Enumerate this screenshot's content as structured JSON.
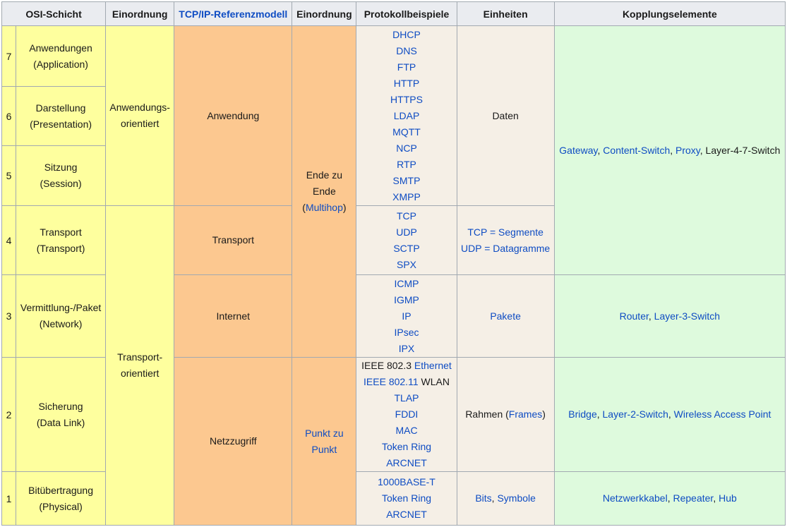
{
  "colors": {
    "header_bg": "#eaecf0",
    "osi_yellow": "#feff9e",
    "tcpip_orange": "#fcc890",
    "protocol_beige": "#f5efe6",
    "coupling_green": "#defadd",
    "border_gray": "#a2a9b1",
    "link_blue": "#0e4cc3"
  },
  "header": {
    "osi_schicht": "OSI-Schicht",
    "einordnung_osi": "Einordnung",
    "tcpip_referenzmodell": "TCP/IP-Referenzmodell",
    "einordnung_tcpip": "Einordnung",
    "protokollbeispiele": "Protokollbeispiele",
    "einheiten": "Einheiten",
    "kopplungselemente": "Kopplungselemente"
  },
  "cells": {
    "l7_num": "7",
    "l7_name": [
      [
        {
          "t": "Anwendungen"
        }
      ],
      [
        {
          "t": "(Application)"
        }
      ]
    ],
    "l6_num": "6",
    "l6_name": [
      [
        {
          "t": "Darstellung"
        }
      ],
      [
        {
          "t": "(Presentation)"
        }
      ]
    ],
    "l5_num": "5",
    "l5_name": [
      [
        {
          "t": "Sitzung"
        }
      ],
      [
        {
          "t": "(Session)"
        }
      ]
    ],
    "l4_num": "4",
    "l4_name": [
      [
        {
          "t": "Transport"
        }
      ],
      [
        {
          "t": "(Transport)"
        }
      ]
    ],
    "l3_num": "3",
    "l3_name": [
      [
        {
          "t": "Vermittlung-/Paket"
        }
      ],
      [
        {
          "t": "(Network)"
        }
      ]
    ],
    "l2_num": "2",
    "l2_name": [
      [
        {
          "t": "Sicherung"
        }
      ],
      [
        {
          "t": "(Data Link)"
        }
      ]
    ],
    "l1_num": "1",
    "l1_name": [
      [
        {
          "t": "Bitübertragung"
        }
      ],
      [
        {
          "t": "(Physical)"
        }
      ]
    ],
    "einordnung_anwendung": [
      [
        {
          "t": "Anwendungs-"
        }
      ],
      [
        {
          "t": "orientiert"
        }
      ]
    ],
    "einordnung_transport": [
      [
        {
          "t": "Transport-"
        }
      ],
      [
        {
          "t": "orientiert"
        }
      ]
    ],
    "tcpip_anwendung": [
      [
        {
          "t": "Anwendung"
        }
      ]
    ],
    "tcpip_transport": [
      [
        {
          "t": "Transport"
        }
      ]
    ],
    "tcpip_internet": [
      [
        {
          "t": "Internet"
        }
      ]
    ],
    "tcpip_netzzugriff": [
      [
        {
          "t": "Netzzugriff"
        }
      ]
    ],
    "einordnung2_ende": [
      [
        {
          "t": "Ende zu"
        }
      ],
      [
        {
          "t": "Ende"
        }
      ],
      [
        {
          "t": "("
        },
        {
          "t": "Multihop",
          "l": true
        },
        {
          "t": ")"
        }
      ]
    ],
    "einordnung2_punkt": [
      [
        {
          "t": "Punkt zu",
          "l": true
        }
      ],
      [
        {
          "t": "Punkt",
          "l": true
        }
      ]
    ],
    "protokolle_anwendung": [
      [
        {
          "t": "DHCP",
          "l": true
        }
      ],
      [
        {
          "t": "DNS",
          "l": true
        }
      ],
      [
        {
          "t": "FTP",
          "l": true
        }
      ],
      [
        {
          "t": "HTTP",
          "l": true
        }
      ],
      [
        {
          "t": "HTTPS",
          "l": true
        }
      ],
      [
        {
          "t": "LDAP",
          "l": true
        }
      ],
      [
        {
          "t": "MQTT",
          "l": true
        }
      ],
      [
        {
          "t": "NCP",
          "l": true
        }
      ],
      [
        {
          "t": "RTP",
          "l": true
        }
      ],
      [
        {
          "t": "SMTP",
          "l": true
        }
      ],
      [
        {
          "t": "XMPP",
          "l": true
        }
      ]
    ],
    "protokolle_transport": [
      [
        {
          "t": "TCP",
          "l": true
        }
      ],
      [
        {
          "t": "UDP",
          "l": true
        }
      ],
      [
        {
          "t": "SCTP",
          "l": true
        }
      ],
      [
        {
          "t": "SPX",
          "l": true
        }
      ]
    ],
    "protokolle_internet": [
      [
        {
          "t": "ICMP",
          "l": true
        }
      ],
      [
        {
          "t": "IGMP",
          "l": true
        }
      ],
      [
        {
          "t": "IP",
          "l": true
        }
      ],
      [
        {
          "t": "IPsec",
          "l": true
        }
      ],
      [
        {
          "t": "IPX",
          "l": true
        }
      ]
    ],
    "protokolle_netzzugriff_l2": [
      [
        {
          "t": "IEEE 802.3 "
        },
        {
          "t": "Ethernet",
          "l": true
        }
      ],
      [
        {
          "t": "IEEE 802.11",
          "l": true
        },
        {
          "t": " WLAN"
        }
      ],
      [
        {
          "t": "TLAP",
          "l": true
        }
      ],
      [
        {
          "t": "FDDI",
          "l": true
        }
      ],
      [
        {
          "t": "MAC",
          "l": true
        }
      ],
      [
        {
          "t": "Token Ring",
          "l": true
        }
      ],
      [
        {
          "t": "ARCNET",
          "l": true
        }
      ]
    ],
    "protokolle_netzzugriff_l1": [
      [
        {
          "t": "1000BASE-T",
          "l": true
        }
      ],
      [
        {
          "t": "Token Ring",
          "l": true
        }
      ],
      [
        {
          "t": "ARCNET",
          "l": true
        }
      ]
    ],
    "einheiten_daten": [
      [
        {
          "t": "Daten"
        }
      ]
    ],
    "einheiten_transport": [
      [
        {
          "t": "TCP = Segmente",
          "l": true
        }
      ],
      [
        {
          "t": "UDP = Datagramme",
          "l": true
        }
      ]
    ],
    "einheiten_pakete": [
      [
        {
          "t": "Pakete",
          "l": true
        }
      ]
    ],
    "einheiten_rahmen": [
      [
        {
          "t": "Rahmen ("
        },
        {
          "t": "Frames",
          "l": true
        },
        {
          "t": ")"
        }
      ]
    ],
    "einheiten_bits": [
      [
        {
          "t": "Bits",
          "l": true
        },
        {
          "t": ", "
        },
        {
          "t": "Symbole",
          "l": true
        }
      ]
    ],
    "kopplung_l7_l4": [
      [
        {
          "t": "Gateway",
          "l": true
        },
        {
          "t": ", "
        },
        {
          "t": "Content-Switch",
          "l": true
        },
        {
          "t": ", "
        },
        {
          "t": "Proxy",
          "l": true
        },
        {
          "t": ", Layer-4-7-Switch"
        }
      ]
    ],
    "kopplung_l3": [
      [
        {
          "t": "Router",
          "l": true
        },
        {
          "t": ", "
        },
        {
          "t": "Layer-3-Switch",
          "l": true
        }
      ]
    ],
    "kopplung_l2": [
      [
        {
          "t": "Bridge",
          "l": true
        },
        {
          "t": ", "
        },
        {
          "t": "Layer-2-Switch",
          "l": true
        },
        {
          "t": ", "
        },
        {
          "t": "Wireless Access Point",
          "l": true
        }
      ]
    ],
    "kopplung_l1": [
      [
        {
          "t": "Netzwerkkabel",
          "l": true
        },
        {
          "t": ", "
        },
        {
          "t": "Repeater",
          "l": true
        },
        {
          "t": ", "
        },
        {
          "t": "Hub",
          "l": true
        }
      ]
    ]
  }
}
